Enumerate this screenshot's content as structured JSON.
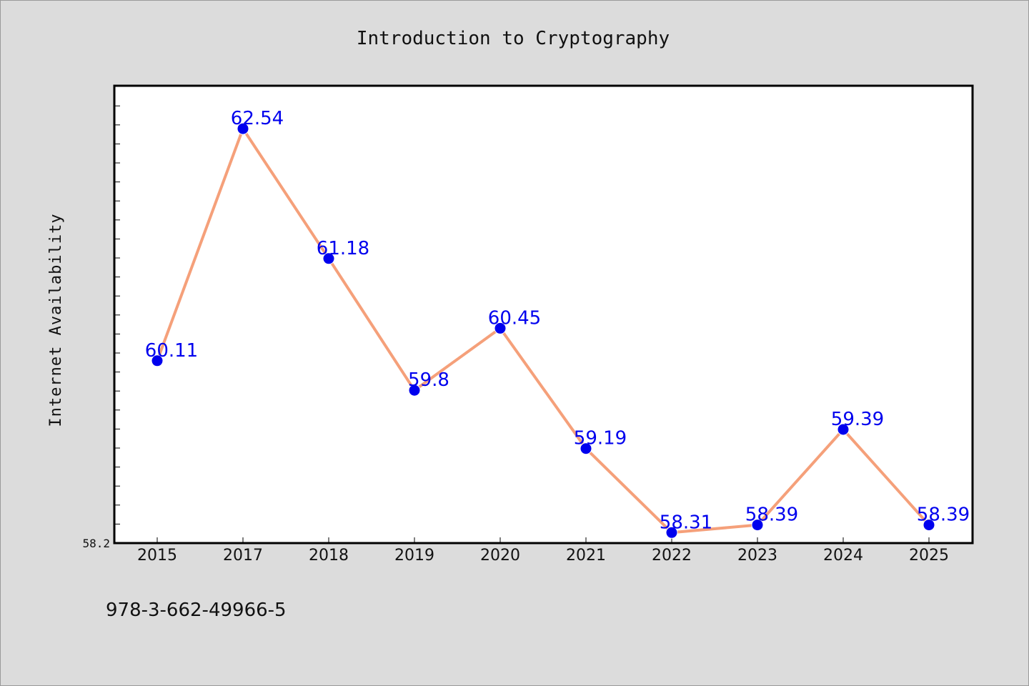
{
  "chart_data": {
    "type": "line",
    "title": "Introduction to Cryptography",
    "xlabel": "",
    "ylabel": "Internet Availability",
    "categories": [
      "2015",
      "2017",
      "2018",
      "2019",
      "2020",
      "2021",
      "2022",
      "2023",
      "2024",
      "2025"
    ],
    "series": [
      {
        "values": [
          60.11,
          62.54,
          61.18,
          59.8,
          60.45,
          59.19,
          58.31,
          58.39,
          59.39,
          58.39
        ]
      }
    ],
    "data_labels": [
      "60.11",
      "62.54",
      "61.18",
      "59.8",
      "60.45",
      "59.19",
      "58.31",
      "58.39",
      "59.39",
      "58.39"
    ],
    "y_tick_labels": [
      "58.2"
    ],
    "ylim": [
      58.2,
      62.99
    ],
    "grid": false,
    "colors": {
      "line": "#f5a07a",
      "marker": "#0000ee",
      "label": "#0000ee"
    }
  },
  "footer": {
    "isbn": "978-3-662-49966-5"
  }
}
